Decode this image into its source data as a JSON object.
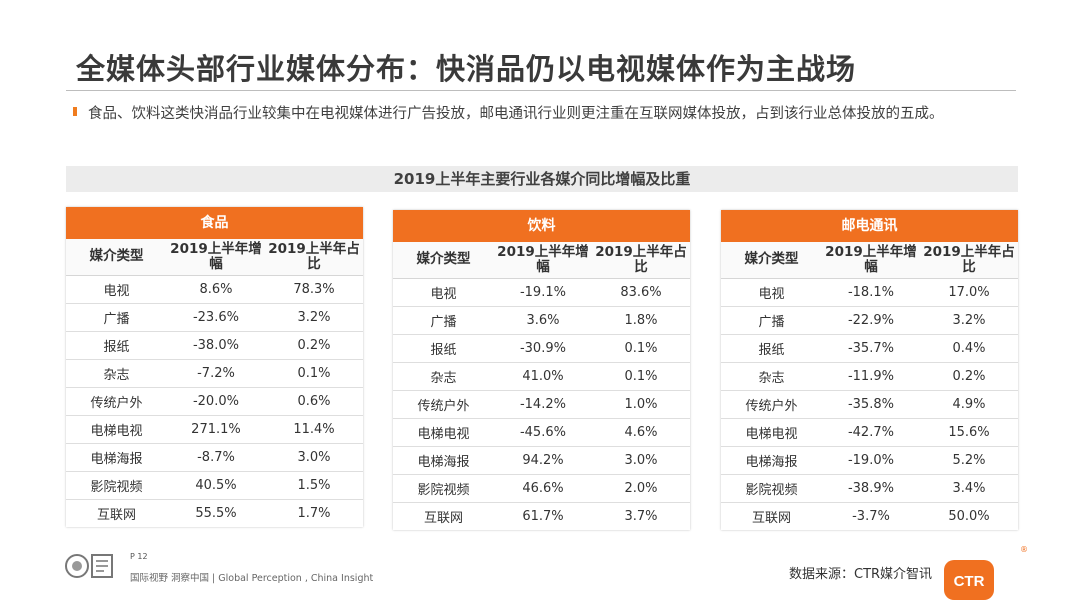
{
  "title": "全媒体头部行业媒体分布：快消品仍以电视媒体作为主战场",
  "description": "食品、饮料这类快消品行业较集中在电视媒体进行广告投放，邮电通讯行业则更注重在互联网媒体投放，占到该行业总体投放的五成。",
  "subtitle": "2019上半年主要行业各媒介同比增幅及比重",
  "accent_color": "#f07020",
  "columns": {
    "media_type": "媒介类型",
    "growth": "2019上半年增幅",
    "share": "2019上半年占比"
  },
  "panels": [
    {
      "name": "食品",
      "rows": [
        {
          "media": "电视",
          "growth": "8.6%",
          "share": "78.3%"
        },
        {
          "media": "广播",
          "growth": "-23.6%",
          "share": "3.2%"
        },
        {
          "media": "报纸",
          "growth": "-38.0%",
          "share": "0.2%"
        },
        {
          "media": "杂志",
          "growth": "-7.2%",
          "share": "0.1%"
        },
        {
          "media": "传统户外",
          "growth": "-20.0%",
          "share": "0.6%"
        },
        {
          "media": "电梯电视",
          "growth": "271.1%",
          "share": "11.4%"
        },
        {
          "media": "电梯海报",
          "growth": "-8.7%",
          "share": "3.0%"
        },
        {
          "media": "影院视频",
          "growth": "40.5%",
          "share": "1.5%"
        },
        {
          "media": "互联网",
          "growth": "55.5%",
          "share": "1.7%"
        }
      ]
    },
    {
      "name": "饮料",
      "rows": [
        {
          "media": "电视",
          "growth": "-19.1%",
          "share": "83.6%"
        },
        {
          "media": "广播",
          "growth": "3.6%",
          "share": "1.8%"
        },
        {
          "media": "报纸",
          "growth": "-30.9%",
          "share": "0.1%"
        },
        {
          "media": "杂志",
          "growth": "41.0%",
          "share": "0.1%"
        },
        {
          "media": "传统户外",
          "growth": "-14.2%",
          "share": "1.0%"
        },
        {
          "media": "电梯电视",
          "growth": "-45.6%",
          "share": "4.6%"
        },
        {
          "media": "电梯海报",
          "growth": "94.2%",
          "share": "3.0%"
        },
        {
          "media": "影院视频",
          "growth": "46.6%",
          "share": "2.0%"
        },
        {
          "media": "互联网",
          "growth": "61.7%",
          "share": "3.7%"
        }
      ]
    },
    {
      "name": "邮电通讯",
      "rows": [
        {
          "media": "电视",
          "growth": "-18.1%",
          "share": "17.0%"
        },
        {
          "media": "广播",
          "growth": "-22.9%",
          "share": "3.2%"
        },
        {
          "media": "报纸",
          "growth": "-35.7%",
          "share": "0.4%"
        },
        {
          "media": "杂志",
          "growth": "-11.9%",
          "share": "0.2%"
        },
        {
          "media": "传统户外",
          "growth": "-35.8%",
          "share": "4.9%"
        },
        {
          "media": "电梯电视",
          "growth": "-42.7%",
          "share": "15.6%"
        },
        {
          "media": "电梯海报",
          "growth": "-19.0%",
          "share": "5.2%"
        },
        {
          "media": "影院视频",
          "growth": "-38.9%",
          "share": "3.4%"
        },
        {
          "media": "互联网",
          "growth": "-3.7%",
          "share": "50.0%"
        }
      ]
    }
  ],
  "footer": {
    "page": "P 12",
    "tagline": "国际视野 洞察中国 | Global Perception , China Insight",
    "source": "数据来源：CTR媒介智讯",
    "logo_text": "CTR",
    "registered": "®"
  }
}
